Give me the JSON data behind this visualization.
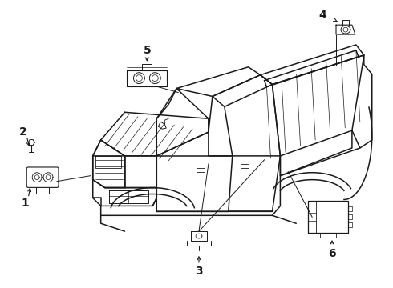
{
  "bg_color": "#ffffff",
  "line_color": "#1a1a1a",
  "fig_width": 4.9,
  "fig_height": 3.6,
  "dpi": 100,
  "truck_lw": 1.1,
  "detail_lw": 0.7,
  "callout_fontsize": 10
}
